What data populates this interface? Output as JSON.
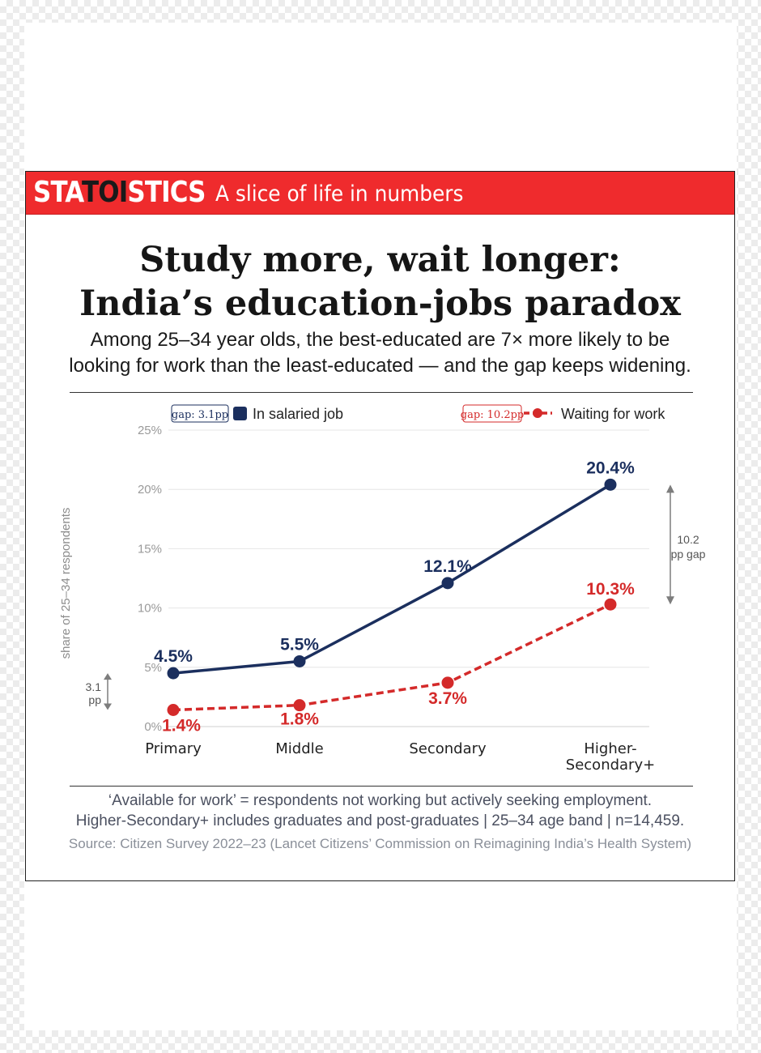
{
  "header": {
    "logo_pre": "STA",
    "logo_mid": "TOI",
    "logo_post": "STICS",
    "tagline": "A slice of life in numbers"
  },
  "title_line1": "Study more, wait longer:",
  "title_line2": "India’s education-jobs paradox",
  "subtitle_line1": "Among 25–34 year olds, the best-educated are 7× more likely to be",
  "subtitle_line2": "looking for work than the least-educated — and the gap keeps widening.",
  "footer": {
    "note_line1": "‘Available for work’ = respondents not working but actively seeking employment.",
    "note_line2": "Higher-Secondary+ includes graduates and post-graduates | 25–34 age band | n=14,459.",
    "source": "Source: Citizen Survey 2022–23 (Lancet Citizens’ Commission on Reimagining India’s Health System)"
  },
  "colors": {
    "salaried": "#1b2f5e",
    "waiting": "#d42a2a",
    "brand_red": "#ef2b2d"
  },
  "chart_data": {
    "type": "line",
    "categories": [
      "Primary",
      "Middle",
      "Secondary",
      "Higher-\nSecondary+"
    ],
    "series": [
      {
        "name": "In salaried job",
        "values": [
          4.5,
          5.5,
          12.1,
          20.4
        ],
        "labels": [
          "4.5%",
          "5.5%",
          "12.1%",
          "20.4%"
        ],
        "style": "solid"
      },
      {
        "name": "Waiting for work",
        "values": [
          1.4,
          1.8,
          3.7,
          10.3
        ],
        "labels": [
          "1.4%",
          "1.8%",
          "3.7%",
          "10.3%"
        ],
        "style": "dashed"
      }
    ],
    "ylabel": "share of 25–34 respondents",
    "ylim": [
      0,
      25
    ],
    "yticks": [
      0,
      5,
      10,
      15,
      20,
      25
    ],
    "ytick_labels": [
      "0%",
      "5%",
      "10%",
      "15%",
      "20%",
      "25%"
    ],
    "grid": true,
    "legend_badges": [
      "gap: 3.1pp",
      "gap: 10.2pp"
    ],
    "annotations": [
      {
        "category": "Primary",
        "text_line1": "3.1",
        "text_line2": "pp"
      },
      {
        "category": "Higher-\nSecondary+",
        "text_line1": "10.2",
        "text_line2": "pp gap"
      }
    ]
  }
}
